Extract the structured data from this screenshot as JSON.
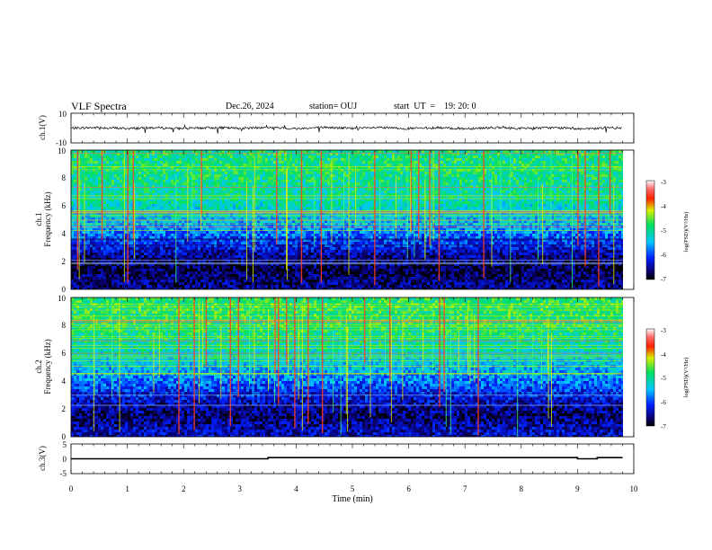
{
  "header": {
    "title": "VLF Spectra",
    "date": "Dec.26, 2024",
    "station": "station= OUJ",
    "start_ut": "start  UT  =    19: 20: 0"
  },
  "chart_data": [
    {
      "type": "line",
      "name": "ch1-waveform",
      "ylabel": "ch.1(V)",
      "ylim": [
        -10,
        10
      ],
      "yticks": [
        "10",
        "-10"
      ],
      "xlim": [
        0,
        10
      ],
      "x": [
        0,
        0.5,
        1,
        1.5,
        2,
        2.5,
        3,
        3.5,
        4,
        4.5,
        5,
        5.5,
        6,
        6.5,
        7,
        7.5,
        8,
        8.5,
        9,
        9.2,
        9.5,
        9.8
      ],
      "y": [
        0,
        1.2,
        -1.0,
        0.8,
        -1.2,
        1.0,
        -0.6,
        1.4,
        -1.5,
        1.6,
        -0.8,
        0.9,
        -1.1,
        0.7,
        -1.3,
        1.0,
        -0.9,
        0.8,
        -1.0,
        -2.5,
        0.9,
        -0.6
      ]
    },
    {
      "type": "heatmap",
      "name": "ch1-spectrogram",
      "ylabel_top": "ch.1",
      "ylabel": "Frequency  (kHz)",
      "xlim": [
        0,
        9.8
      ],
      "ylim": [
        0,
        10
      ],
      "yticks": [
        "0",
        "2",
        "4",
        "6",
        "8",
        "10"
      ],
      "colorbar": {
        "label": "log(PSD)(V²/Hz)",
        "range": [
          -7,
          -3
        ],
        "ticks": [
          "-3",
          "-4",
          "-5",
          "-6",
          "-7"
        ]
      },
      "freq_kHz": [
        0.5,
        1.5,
        2.5,
        3.5,
        4.5,
        5.5,
        6.5,
        7.5,
        8.5,
        9.5
      ],
      "logpsd_profile": [
        -6.6,
        -6.8,
        -6.5,
        -6.0,
        -5.6,
        -5.3,
        -5.1,
        -5.0,
        -4.9,
        -4.9
      ]
    },
    {
      "type": "heatmap",
      "name": "ch2-spectrogram",
      "ylabel_top": "ch.2",
      "ylabel": "Frequency  (kHz)",
      "xlim": [
        0,
        9.8
      ],
      "ylim": [
        0,
        10
      ],
      "yticks": [
        "0",
        "2",
        "4",
        "6",
        "8",
        "10"
      ],
      "colorbar": {
        "label": "log(PSD)(V²/Hz)",
        "range": [
          -7,
          -3
        ],
        "ticks": [
          "-3",
          "-4",
          "-5",
          "-6",
          "-7"
        ]
      },
      "freq_kHz": [
        0.5,
        1.5,
        2.5,
        3.5,
        4.5,
        5.5,
        6.5,
        7.5,
        8.5,
        9.5
      ],
      "logpsd_profile": [
        -6.4,
        -6.7,
        -6.4,
        -6.0,
        -5.6,
        -5.3,
        -5.1,
        -4.9,
        -4.8,
        -4.8
      ]
    },
    {
      "type": "line",
      "name": "ch3-waveform",
      "ylabel": "ch.3(V)",
      "ylim": [
        -5,
        5
      ],
      "yticks": [
        "5",
        "0",
        "-5"
      ],
      "xlim": [
        0,
        10
      ],
      "xlabel": "Time  (min)",
      "xticks": [
        "0",
        "1",
        "2",
        "3",
        "4",
        "5",
        "6",
        "7",
        "8",
        "9",
        "10"
      ],
      "x": [
        0,
        3.5,
        3.5,
        9.0,
        9.0,
        9.35,
        9.35,
        9.8
      ],
      "y": [
        0,
        0,
        0.4,
        0.4,
        0,
        0,
        0.4,
        0.4
      ]
    }
  ]
}
